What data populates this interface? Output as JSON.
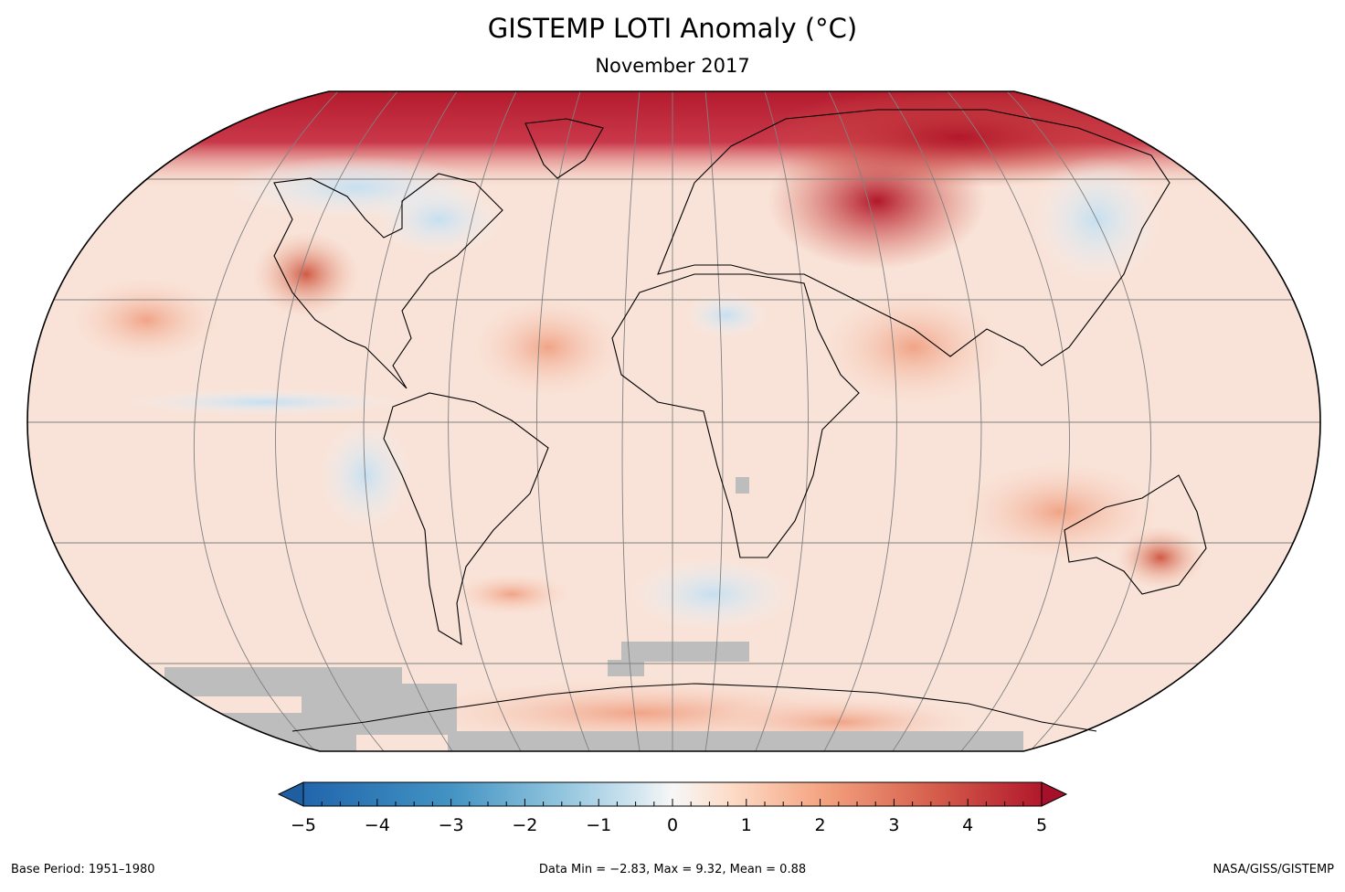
{
  "title": "GISTEMP LOTI Anomaly (°C)",
  "subtitle": "November 2017",
  "colorbar": {
    "min": -5,
    "max": 5,
    "tick_labels": [
      "−5",
      "−4",
      "−3",
      "−2",
      "−1",
      "0",
      "1",
      "2",
      "3",
      "4",
      "5"
    ],
    "colors": {
      "min_color": "#2166ac",
      "zero_color": "#f7f7f7",
      "max_color": "#b2182b",
      "missing": "#c0c0c0"
    }
  },
  "footer": {
    "base_period": "Base Period: 1951–1980",
    "stats": "Data Min = −2.83, Max = 9.32, Mean = 0.88",
    "credit": "NASA/GISS/GISTEMP"
  }
}
